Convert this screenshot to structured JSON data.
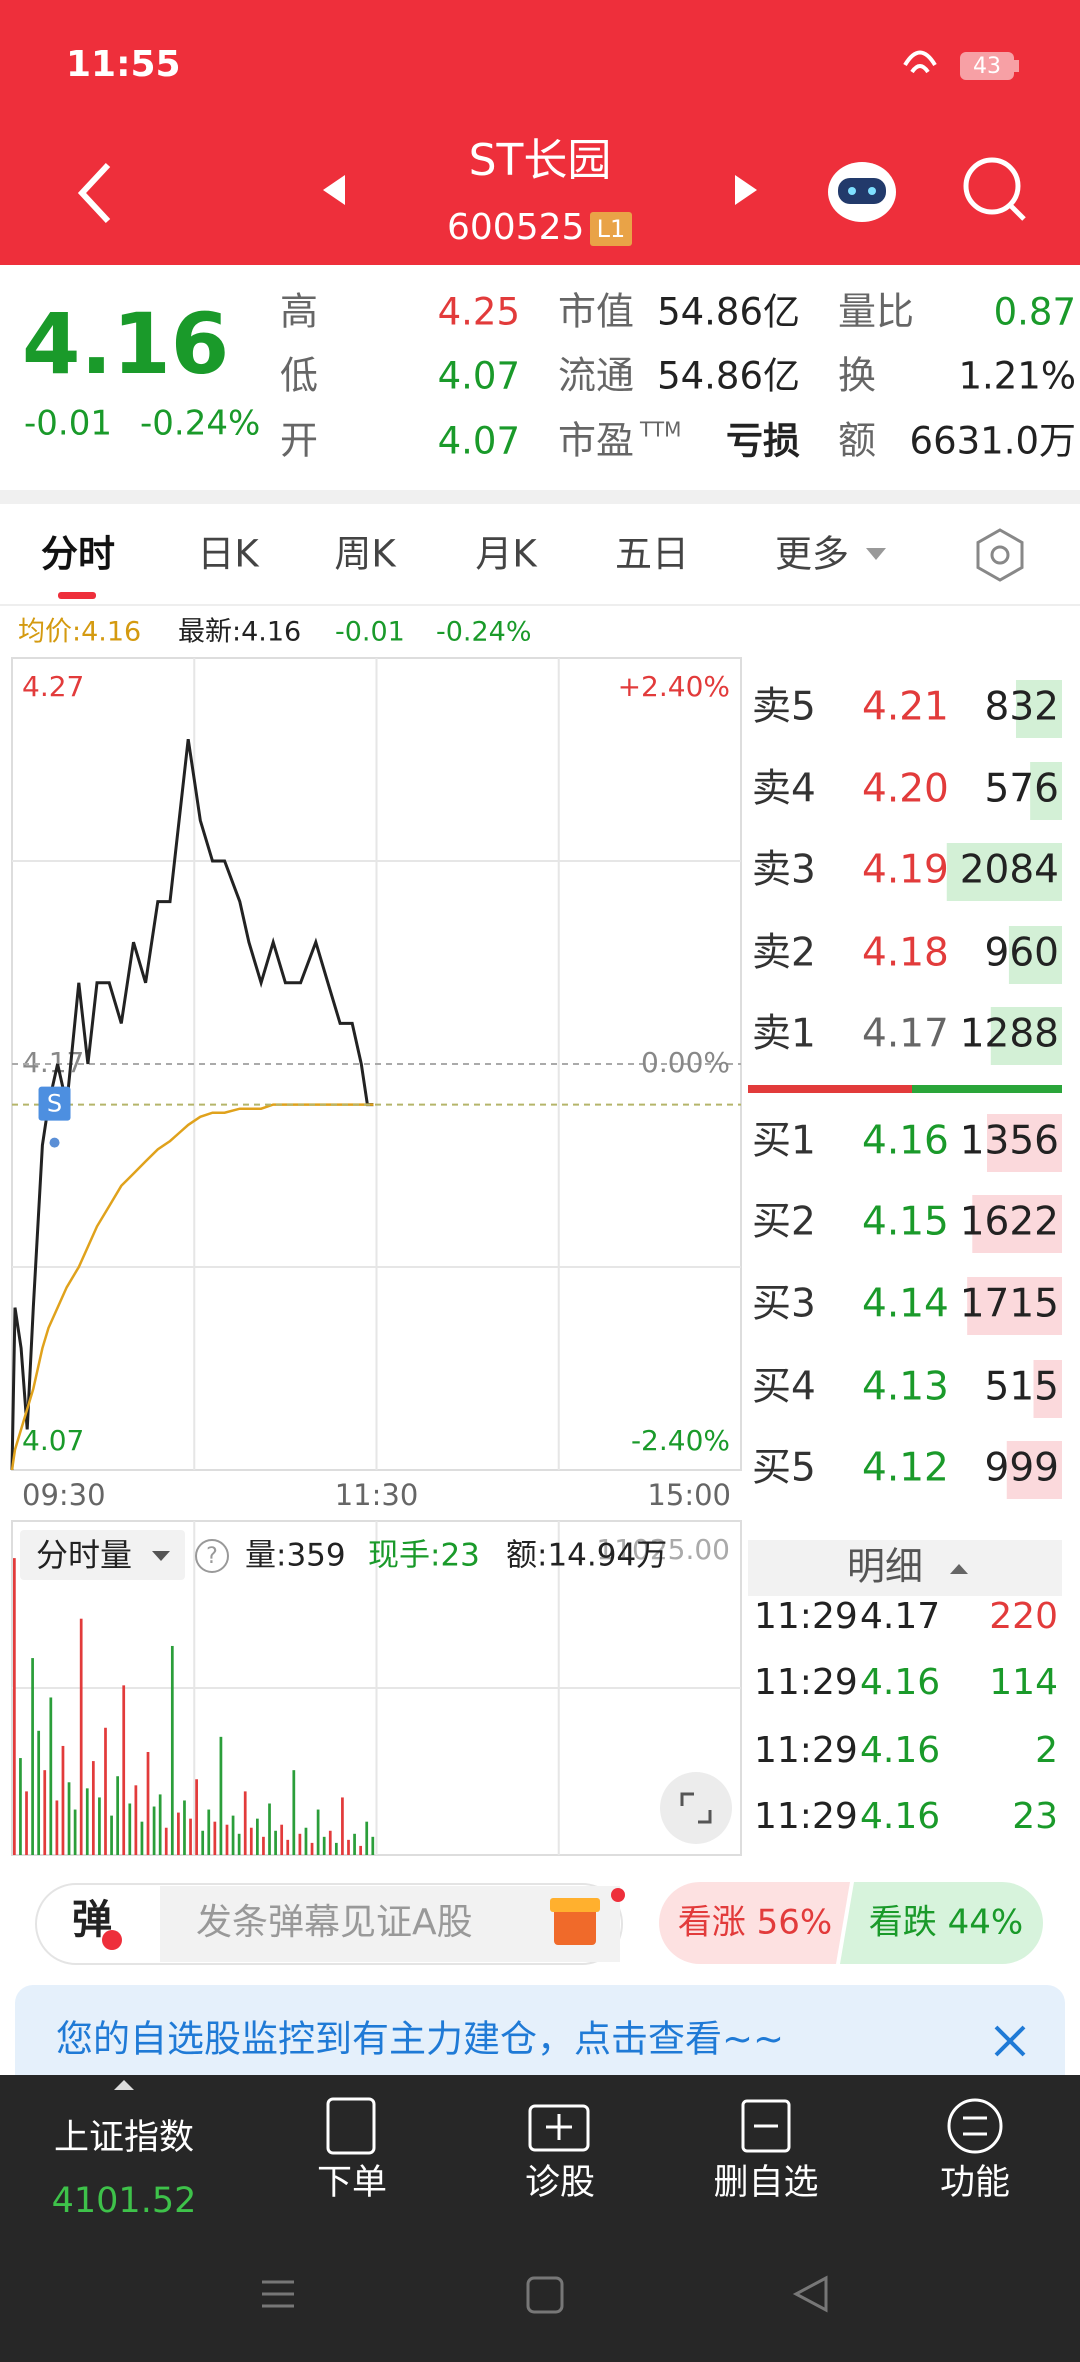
{
  "status_bar": {
    "time": "11:55",
    "battery": "43"
  },
  "header": {
    "title": "ST长园",
    "code": "600525",
    "badge": "L1"
  },
  "quote": {
    "price": "4.16",
    "change": "-0.01",
    "change_pct": "-0.24%",
    "stats": [
      [
        {
          "label": "高",
          "value": "4.25"
        },
        {
          "label": "低",
          "value": "4.07"
        },
        {
          "label": "开",
          "value": "4.07"
        }
      ],
      [
        {
          "label": "市值",
          "value": "54.86亿"
        },
        {
          "label": "流通",
          "value": "54.86亿"
        },
        {
          "label": "市盈",
          "sup": "TTM",
          "value": "亏损"
        }
      ],
      [
        {
          "label": "量比",
          "value": "0.87"
        },
        {
          "label": "换",
          "value": "1.21%"
        },
        {
          "label": "额",
          "value": "6631.0万"
        }
      ]
    ]
  },
  "tabs": [
    "分时",
    "日K",
    "周K",
    "月K",
    "五日",
    "更多"
  ],
  "info_line": [
    "均价:4.16",
    "最新:4.16",
    "-0.01",
    "-0.24%"
  ],
  "chart_data": [
    {
      "type": "line",
      "x": [
        0,
        1,
        3,
        5,
        7,
        10,
        12,
        15,
        18,
        22,
        25,
        28,
        32,
        36,
        40,
        44,
        48,
        52,
        55,
        58,
        60,
        62,
        66,
        70,
        75,
        78,
        82,
        86,
        90,
        95,
        100,
        104,
        108,
        112,
        115,
        117,
        119
      ],
      "series": [
        {
          "color": "#222222",
          "values": [
            4.07,
            4.11,
            4.1,
            4.08,
            4.11,
            4.15,
            4.16,
            4.17,
            4.16,
            4.19,
            4.17,
            4.19,
            4.19,
            4.18,
            4.2,
            4.19,
            4.21,
            4.21,
            4.23,
            4.25,
            4.24,
            4.23,
            4.22,
            4.22,
            4.21,
            4.2,
            4.19,
            4.2,
            4.19,
            4.19,
            4.2,
            4.19,
            4.18,
            4.18,
            4.17,
            4.16,
            4.16
          ]
        },
        {
          "color": "#e0a21c",
          "values": [
            4.07,
            4.075,
            4.08,
            4.085,
            4.09,
            4.1,
            4.105,
            4.11,
            4.115,
            4.12,
            4.125,
            4.13,
            4.135,
            4.14,
            4.143,
            4.146,
            4.149,
            4.151,
            4.153,
            4.155,
            4.156,
            4.157,
            4.158,
            4.158,
            4.159,
            4.159,
            4.159,
            4.16,
            4.16,
            4.16,
            4.16,
            4.16,
            4.16,
            4.16,
            4.16,
            4.16,
            4.16
          ]
        }
      ],
      "xlim": [
        0,
        240
      ],
      "xticks": [
        {
          "value": 0,
          "label": "09:30"
        },
        {
          "value": 120,
          "label": "11:30"
        },
        {
          "value": 240,
          "label": "15:00"
        }
      ],
      "ylim": [
        4.07,
        4.27
      ],
      "yticks": [
        4.27,
        4.17,
        4.07
      ],
      "y2lim": [
        -2.4,
        2.4
      ],
      "y2ticks": [
        {
          "value": 2.4,
          "label": "+2.40%"
        },
        {
          "value": 0,
          "label": "0.00%"
        },
        {
          "value": -2.4,
          "label": "-2.40%"
        }
      ],
      "annotations": [
        {
          "label": "S",
          "x": 14,
          "y": 4.16
        }
      ]
    },
    {
      "type": "bar",
      "title": "分时量",
      "stats": [
        "量:359",
        "现手:23",
        "额:14.94万"
      ],
      "x": [
        0,
        2,
        4,
        6,
        8,
        10,
        12,
        14,
        16,
        18,
        20,
        22,
        24,
        26,
        28,
        30,
        32,
        34,
        36,
        38,
        40,
        42,
        44,
        46,
        48,
        50,
        52,
        54,
        56,
        58,
        60,
        62,
        64,
        66,
        68,
        70,
        72,
        74,
        76,
        78,
        80,
        82,
        84,
        86,
        88,
        90,
        92,
        94,
        96,
        98,
        100,
        102,
        104,
        106,
        108,
        110,
        112,
        114,
        116,
        118
      ],
      "values": [
        9800,
        3200,
        2100,
        6500,
        4100,
        2800,
        5200,
        1800,
        3600,
        2400,
        1500,
        7800,
        2200,
        3100,
        1900,
        4200,
        1300,
        2600,
        5600,
        1700,
        2300,
        1100,
        3400,
        1600,
        2000,
        900,
        6900,
        1400,
        1800,
        1200,
        2500,
        800,
        1500,
        1100,
        3900,
        1000,
        1300,
        700,
        2100,
        900,
        1200,
        600,
        1700,
        800,
        1000,
        500,
        2800,
        700,
        900,
        400,
        1500,
        600,
        800,
        400,
        1900,
        500,
        700,
        300,
        1100,
        600
      ],
      "colors": [
        "#e23b3b",
        "#2b9e3a",
        "#e23b3b",
        "#2b9e3a",
        "#2b9e3a",
        "#e23b3b",
        "#2b9e3a",
        "#e23b3b",
        "#e23b3b",
        "#2b9e3a",
        "#2b9e3a",
        "#e23b3b",
        "#2b9e3a",
        "#e23b3b",
        "#2b9e3a",
        "#e23b3b",
        "#2b9e3a",
        "#2b9e3a",
        "#e23b3b",
        "#2b9e3a",
        "#e23b3b",
        "#2b9e3a",
        "#e23b3b",
        "#2b9e3a",
        "#2b9e3a",
        "#e23b3b",
        "#2b9e3a",
        "#e23b3b",
        "#2b9e3a",
        "#e23b3b",
        "#e23b3b",
        "#2b9e3a",
        "#2b9e3a",
        "#e23b3b",
        "#2b9e3a",
        "#e23b3b",
        "#2b9e3a",
        "#2b9e3a",
        "#e23b3b",
        "#e23b3b",
        "#2b9e3a",
        "#e23b3b",
        "#2b9e3a",
        "#2b9e3a",
        "#e23b3b",
        "#e23b3b",
        "#2b9e3a",
        "#e23b3b",
        "#2b9e3a",
        "#e23b3b",
        "#2b9e3a",
        "#2b9e3a",
        "#e23b3b",
        "#2b9e3a",
        "#e23b3b",
        "#e23b3b",
        "#2b9e3a",
        "#e23b3b",
        "#2b9e3a",
        "#2b9e3a"
      ],
      "xlim": [
        0,
        240
      ],
      "ylim": [
        0,
        11025
      ],
      "yticks": [
        {
          "value": 11025,
          "label": "11025.00"
        }
      ]
    }
  ],
  "order_book": {
    "asks": [
      {
        "label": "卖5",
        "price": "4.21",
        "volume": 832
      },
      {
        "label": "卖4",
        "price": "4.20",
        "volume": 576
      },
      {
        "label": "卖3",
        "price": "4.19",
        "volume": 2084
      },
      {
        "label": "卖2",
        "price": "4.18",
        "volume": 960
      },
      {
        "label": "卖1",
        "price": "4.17",
        "volume": 1288
      }
    ],
    "bids": [
      {
        "label": "买1",
        "price": "4.16",
        "volume": 1356
      },
      {
        "label": "买2",
        "price": "4.15",
        "volume": 1622
      },
      {
        "label": "买3",
        "price": "4.14",
        "volume": 1715
      },
      {
        "label": "买4",
        "price": "4.13",
        "volume": 515
      },
      {
        "label": "买5",
        "price": "4.12",
        "volume": 999
      }
    ]
  },
  "trades": {
    "title": "明细",
    "rows": [
      [
        "11:29",
        "4.17",
        "220"
      ],
      [
        "11:29",
        "4.16",
        "114"
      ],
      [
        "11:29",
        "4.16",
        "2"
      ],
      [
        "11:29",
        "4.16",
        "23"
      ]
    ]
  },
  "danmu": {
    "badge": "弹",
    "placeholder": "发条弹幕见证A股",
    "bull": "看涨 56%",
    "bear": "看跌 44%"
  },
  "banner": "您的自选股监控到有主力建仓，点击查看~~",
  "bottom_nav": {
    "index_name": "上证指数",
    "index_value": "4101.52",
    "items": [
      "下单",
      "诊股",
      "删自选",
      "功能"
    ]
  }
}
